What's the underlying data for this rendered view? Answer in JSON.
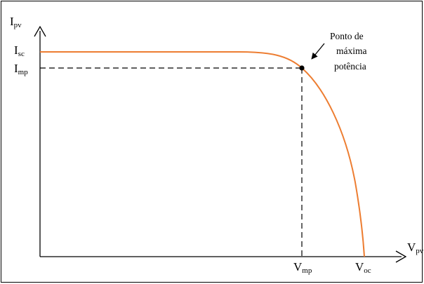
{
  "axes": {
    "y_label": {
      "main": "I",
      "sub": "pv"
    },
    "x_label": {
      "main": "V",
      "sub": "pv"
    }
  },
  "ticks": {
    "isc": {
      "main": "I",
      "sub": "sc"
    },
    "imp": {
      "main": "I",
      "sub": "mp"
    },
    "vmp": {
      "main": "V",
      "sub": "mp"
    },
    "voc": {
      "main": "V",
      "sub": "oc"
    }
  },
  "annotation": {
    "lines": [
      "Ponto de",
      "máxima",
      "potência"
    ]
  },
  "colors": {
    "curve": "#ED7D31",
    "axes": "#000000",
    "dashed": "#000000"
  }
}
